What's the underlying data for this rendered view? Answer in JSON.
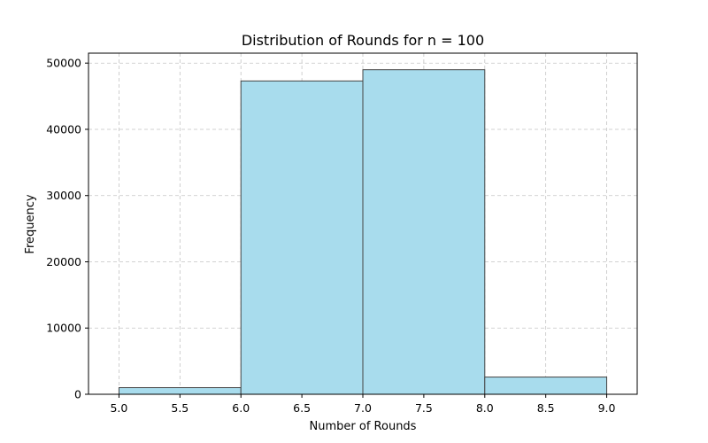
{
  "chart_data": {
    "type": "bar",
    "title": "Distribution of Rounds for n = 100",
    "xlabel": "Number of Rounds",
    "ylabel": "Frequency",
    "bins": [
      {
        "start": 5.0,
        "end": 6.0,
        "value": 1000
      },
      {
        "start": 6.0,
        "end": 7.0,
        "value": 47300
      },
      {
        "start": 7.0,
        "end": 8.0,
        "value": 49000
      },
      {
        "start": 8.0,
        "end": 9.0,
        "value": 2600
      }
    ],
    "xlim": [
      4.75,
      9.25
    ],
    "ylim": [
      0,
      51500
    ],
    "xticks": [
      5.0,
      5.5,
      6.0,
      6.5,
      7.0,
      7.5,
      8.0,
      8.5,
      9.0
    ],
    "xtick_labels": [
      "5.0",
      "5.5",
      "6.0",
      "6.5",
      "7.0",
      "7.5",
      "8.0",
      "8.5",
      "9.0"
    ],
    "yticks": [
      0,
      10000,
      20000,
      30000,
      40000,
      50000
    ],
    "ytick_labels": [
      "0",
      "10000",
      "20000",
      "30000",
      "40000",
      "50000"
    ],
    "grid": true,
    "bar_color": "#a8dced",
    "edge_color": "#444444"
  }
}
